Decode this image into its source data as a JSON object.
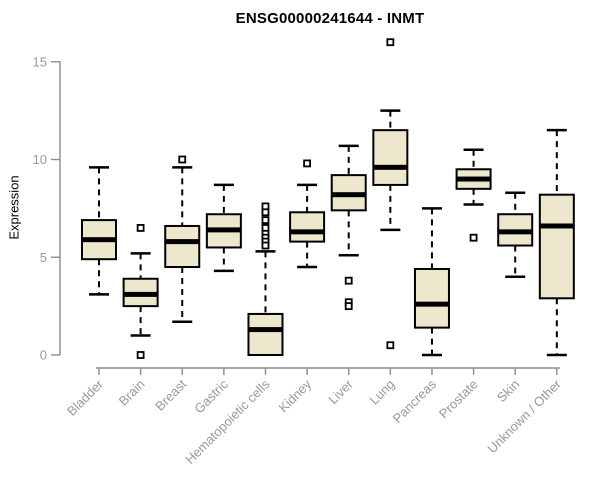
{
  "chart_data": {
    "type": "box",
    "title": "ENSG00000241644 - INMT",
    "ylabel": "Expression",
    "xlabel": "",
    "ylim": [
      0,
      15
    ],
    "y_ticks": [
      0,
      5,
      10,
      15
    ],
    "grid": false,
    "legend": "none",
    "categories": [
      "Bladder",
      "Brain",
      "Breast",
      "Gastric",
      "Hematopoietic cells",
      "Kidney",
      "Liver",
      "Lung",
      "Pancreas",
      "Prostate",
      "Skin",
      "Unknown / Other"
    ],
    "series": [
      {
        "name": "Bladder",
        "whisker_low": 3.1,
        "q1": 4.9,
        "median": 5.9,
        "q3": 6.9,
        "whisker_high": 9.6,
        "outliers": []
      },
      {
        "name": "Brain",
        "whisker_low": 1.0,
        "q1": 2.5,
        "median": 3.1,
        "q3": 3.9,
        "whisker_high": 5.2,
        "outliers": [
          6.5,
          0.0
        ]
      },
      {
        "name": "Breast",
        "whisker_low": 1.7,
        "q1": 4.5,
        "median": 5.8,
        "q3": 6.6,
        "whisker_high": 9.6,
        "outliers": [
          10.0
        ]
      },
      {
        "name": "Gastric",
        "whisker_low": 4.3,
        "q1": 5.5,
        "median": 6.4,
        "q3": 7.2,
        "whisker_high": 8.7,
        "outliers": []
      },
      {
        "name": "Hematopoietic cells",
        "whisker_low": 0.0,
        "q1": 0.0,
        "median": 1.3,
        "q3": 2.1,
        "whisker_high": 5.3,
        "outliers": [
          7.6,
          7.3,
          6.9,
          6.5,
          6.2,
          6.0,
          5.8,
          5.6
        ]
      },
      {
        "name": "Kidney",
        "whisker_low": 4.5,
        "q1": 5.8,
        "median": 6.3,
        "q3": 7.3,
        "whisker_high": 8.7,
        "outliers": [
          9.8
        ]
      },
      {
        "name": "Liver",
        "whisker_low": 5.1,
        "q1": 7.4,
        "median": 8.2,
        "q3": 9.2,
        "whisker_high": 10.7,
        "outliers": [
          3.8,
          2.7,
          2.5
        ]
      },
      {
        "name": "Lung",
        "whisker_low": 6.4,
        "q1": 8.7,
        "median": 9.6,
        "q3": 11.5,
        "whisker_high": 12.5,
        "outliers": [
          16.0,
          0.5
        ]
      },
      {
        "name": "Pancreas",
        "whisker_low": 0.0,
        "q1": 1.4,
        "median": 2.6,
        "q3": 4.4,
        "whisker_high": 7.5,
        "outliers": []
      },
      {
        "name": "Prostate",
        "whisker_low": 7.7,
        "q1": 8.5,
        "median": 9.0,
        "q3": 9.5,
        "whisker_high": 10.5,
        "outliers": [
          6.0
        ]
      },
      {
        "name": "Skin",
        "whisker_low": 4.0,
        "q1": 5.6,
        "median": 6.3,
        "q3": 7.2,
        "whisker_high": 8.3,
        "outliers": []
      },
      {
        "name": "Unknown / Other",
        "whisker_low": 0.0,
        "q1": 2.9,
        "median": 6.6,
        "q3": 8.2,
        "whisker_high": 11.5,
        "outliers": []
      }
    ]
  },
  "colors": {
    "background": "#FFFFFF",
    "box_fill": "#EDE8CD",
    "box_stroke": "#000000",
    "median": "#000000",
    "whisker": "#000000",
    "outlier_fill": "#FFFFFF",
    "outlier_stroke": "#000000",
    "axis": "#8C8C8C",
    "tick_label": "#999999",
    "title": "#000000"
  }
}
